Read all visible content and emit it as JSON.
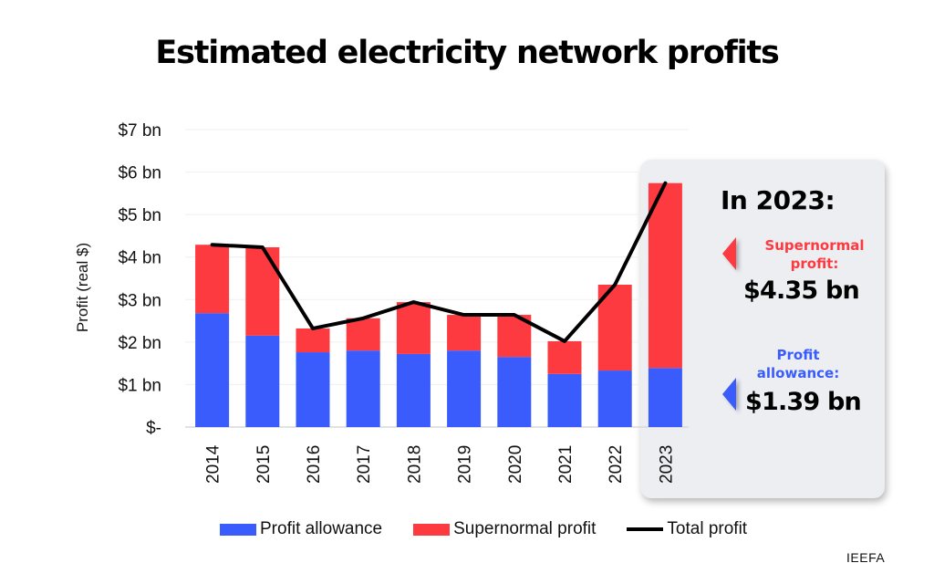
{
  "chart_data": {
    "type": "bar",
    "stacked": true,
    "title": "Estimated electricity network profits",
    "xlabel": "",
    "ylabel": "Profit (real $)",
    "ylim": [
      0,
      7
    ],
    "yticks": [
      0,
      1,
      2,
      3,
      4,
      5,
      6,
      7
    ],
    "ytick_labels": [
      "$-",
      "$1 bn",
      "$2 bn",
      "$3 bn",
      "$4 bn",
      "$5 bn",
      "$6 bn",
      "$7 bn"
    ],
    "grid": true,
    "categories": [
      "2014",
      "2015",
      "2016",
      "2017",
      "2018",
      "2019",
      "2020",
      "2021",
      "2022",
      "2023"
    ],
    "series": [
      {
        "name": "Profit allowance",
        "type": "bar",
        "color": "#3a5cfc",
        "values": [
          2.68,
          2.15,
          1.76,
          1.8,
          1.72,
          1.8,
          1.65,
          1.25,
          1.33,
          1.39
        ]
      },
      {
        "name": "Supernormal profit",
        "type": "bar",
        "color": "#fd3a3f",
        "values": [
          1.61,
          2.08,
          0.56,
          0.76,
          1.22,
          0.84,
          0.99,
          0.77,
          2.02,
          4.35
        ]
      },
      {
        "name": "Total profit",
        "type": "line",
        "color": "#000000",
        "values": [
          4.29,
          4.23,
          2.32,
          2.56,
          2.94,
          2.64,
          2.64,
          2.02,
          3.35,
          5.74
        ]
      }
    ],
    "legend": {
      "placement": "bottom",
      "entries": [
        "Profit allowance",
        "Supernormal profit",
        "Total profit"
      ]
    },
    "annotation": {
      "heading": "In 2023:",
      "supernormal_label": "Supernormal profit:",
      "supernormal_value": "$4.35 bn",
      "allowance_label": "Profit allowance:",
      "allowance_value": "$1.39 bn",
      "highlight_category": "2023"
    }
  },
  "panel": {
    "heading": "In 2023:",
    "supernormal_label_line1": "Supernormal",
    "supernormal_label_line2": "profit:",
    "supernormal_value": "$4.35 bn",
    "allowance_label_line1": "Profit",
    "allowance_label_line2": "allowance:",
    "allowance_value": "$1.39 bn"
  },
  "legend": {
    "allowance": "Profit allowance",
    "supernormal": "Supernormal profit",
    "total": "Total profit"
  },
  "source": "IEEFA",
  "colors": {
    "allowance": "#3a5cfc",
    "supernormal": "#fd3a3f",
    "total": "#000000",
    "panel": "#eceef2"
  }
}
